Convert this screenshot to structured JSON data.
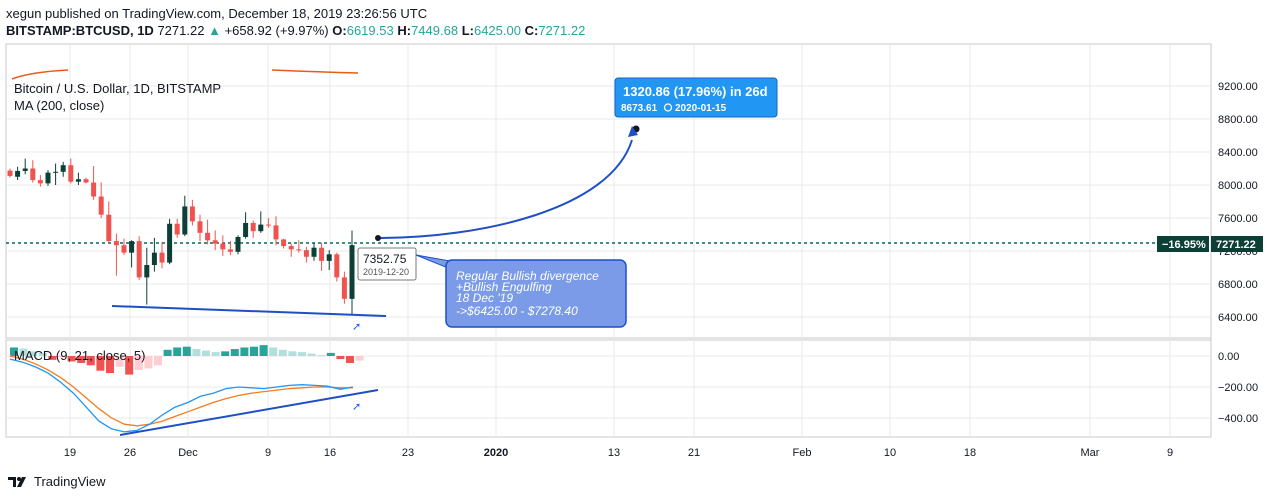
{
  "header": {
    "published_line": "xegun published on TradingView.com, December 18, 2019 23:26:56 UTC",
    "symbol": "BITSTAMP:BTCUSD, 1D",
    "last": "7271.22",
    "change_arrow": "▲",
    "change": "+658.92 (+9.97%)",
    "o_label": "O:",
    "o_val": "6619.53",
    "h_label": "H:",
    "h_val": "7449.68",
    "l_label": "L:",
    "l_val": "6425.00",
    "c_label": "C:",
    "c_val": "7271.22"
  },
  "legend": {
    "title": "Bitcoin / U.S. Dollar, 1D, BITSTAMP",
    "ma": "MA (200, close)",
    "macd": "MACD (9, 21, close, 5)"
  },
  "footer": {
    "brand": "TradingView",
    "logo_icon": "tradingview-logo-icon"
  },
  "annotations": {
    "target_main": "1320.86 (17.96%) in 26d",
    "target_sub_price": "8673.61",
    "target_sub_date": "2020-01-15",
    "clock_icon": "clock-icon",
    "hover_price": "7352.75",
    "hover_date": "2019-12-20",
    "note_lines": [
      "Regular Bullish divergence",
      "+Bullish Engulfing",
      "18 Dec '19",
      "->$6425.00 - $7278.40"
    ],
    "last_pct": "−16.95%",
    "last_price": "7271.22"
  },
  "colors": {
    "up": "#26a69a",
    "down": "#ef5350",
    "dark_up": "#0c3f36",
    "trend": "#1e4fc4",
    "macd": "#2196f3",
    "signal": "#f57c20",
    "hist_up": "#26a69a",
    "hist_up_light": "#b2dfdb",
    "hist_down": "#ef5350",
    "hist_down_light": "#ffcdd2",
    "note_fill": "#7b9be8",
    "target_fill": "#2196f3",
    "ma": "#e65c1b",
    "grid": "#e8e8e8",
    "lastline": "#00695c"
  },
  "chart_data": {
    "type": "candlestick",
    "price_axis": {
      "ticks": [
        "9200.00",
        "8800.00",
        "8400.00",
        "8000.00",
        "7600.00",
        "7200.00",
        "6800.00",
        "6400.00"
      ]
    },
    "macd_axis": {
      "ticks": [
        "0.00",
        "−200.00",
        "−400.00"
      ]
    },
    "x_ticks": [
      "19",
      "26",
      "Dec",
      "9",
      "16",
      "23",
      "2020",
      "13",
      "21",
      "Feb",
      "10",
      "18",
      "Mar",
      "9"
    ],
    "candles": [
      {
        "o": 8175,
        "h": 8200,
        "l": 8090,
        "c": 8110
      },
      {
        "o": 8100,
        "h": 8220,
        "l": 8060,
        "c": 8170
      },
      {
        "o": 8170,
        "h": 8320,
        "l": 8130,
        "c": 8200
      },
      {
        "o": 8200,
        "h": 8300,
        "l": 8030,
        "c": 8060
      },
      {
        "o": 8060,
        "h": 8120,
        "l": 7980,
        "c": 8020
      },
      {
        "o": 8020,
        "h": 8180,
        "l": 7990,
        "c": 8150
      },
      {
        "o": 8150,
        "h": 8260,
        "l": 8000,
        "c": 8160
      },
      {
        "o": 8160,
        "h": 8280,
        "l": 8100,
        "c": 8240
      },
      {
        "o": 8240,
        "h": 8320,
        "l": 8020,
        "c": 8040
      },
      {
        "o": 8040,
        "h": 8150,
        "l": 8000,
        "c": 8070
      },
      {
        "o": 8070,
        "h": 8090,
        "l": 8020,
        "c": 8030
      },
      {
        "o": 8030,
        "h": 8230,
        "l": 7820,
        "c": 7860
      },
      {
        "o": 7860,
        "h": 8030,
        "l": 7600,
        "c": 7640
      },
      {
        "o": 7640,
        "h": 7800,
        "l": 7310,
        "c": 7320
      },
      {
        "o": 7320,
        "h": 7410,
        "l": 6900,
        "c": 7270
      },
      {
        "o": 7270,
        "h": 7350,
        "l": 7150,
        "c": 7180
      },
      {
        "o": 7180,
        "h": 7330,
        "l": 7000,
        "c": 7320
      },
      {
        "o": 7320,
        "h": 7380,
        "l": 6850,
        "c": 6880
      },
      {
        "o": 6880,
        "h": 7240,
        "l": 6550,
        "c": 7030
      },
      {
        "o": 7030,
        "h": 7360,
        "l": 6950,
        "c": 7180
      },
      {
        "o": 7180,
        "h": 7310,
        "l": 6990,
        "c": 7060
      },
      {
        "o": 7060,
        "h": 7590,
        "l": 7040,
        "c": 7530
      },
      {
        "o": 7530,
        "h": 7590,
        "l": 7360,
        "c": 7400
      },
      {
        "o": 7400,
        "h": 7870,
        "l": 7380,
        "c": 7740
      },
      {
        "o": 7740,
        "h": 7820,
        "l": 7510,
        "c": 7560
      },
      {
        "o": 7560,
        "h": 7640,
        "l": 7320,
        "c": 7420
      },
      {
        "o": 7420,
        "h": 7580,
        "l": 7280,
        "c": 7330
      },
      {
        "o": 7330,
        "h": 7450,
        "l": 7210,
        "c": 7290
      },
      {
        "o": 7290,
        "h": 7390,
        "l": 7140,
        "c": 7220
      },
      {
        "o": 7220,
        "h": 7320,
        "l": 7150,
        "c": 7190
      },
      {
        "o": 7190,
        "h": 7390,
        "l": 7160,
        "c": 7370
      },
      {
        "o": 7370,
        "h": 7670,
        "l": 7350,
        "c": 7540
      },
      {
        "o": 7540,
        "h": 7570,
        "l": 7360,
        "c": 7440
      },
      {
        "o": 7440,
        "h": 7680,
        "l": 7420,
        "c": 7520
      },
      {
        "o": 7520,
        "h": 7600,
        "l": 7480,
        "c": 7510
      },
      {
        "o": 7510,
        "h": 7620,
        "l": 7270,
        "c": 7340
      },
      {
        "o": 7340,
        "h": 7350,
        "l": 7230,
        "c": 7260
      },
      {
        "o": 7260,
        "h": 7290,
        "l": 7130,
        "c": 7220
      },
      {
        "o": 7220,
        "h": 7330,
        "l": 7180,
        "c": 7210
      },
      {
        "o": 7210,
        "h": 7250,
        "l": 7060,
        "c": 7130
      },
      {
        "o": 7130,
        "h": 7300,
        "l": 7080,
        "c": 7240
      },
      {
        "o": 7240,
        "h": 7300,
        "l": 6960,
        "c": 7080
      },
      {
        "o": 7080,
        "h": 7210,
        "l": 6970,
        "c": 7160
      },
      {
        "o": 7160,
        "h": 7180,
        "l": 6830,
        "c": 6880
      },
      {
        "o": 6880,
        "h": 6950,
        "l": 6560,
        "c": 6620
      },
      {
        "o": 6620,
        "h": 7449,
        "l": 6425,
        "c": 7271
      }
    ],
    "macd_hist": [
      55,
      48,
      30,
      20,
      -25,
      -10,
      -35,
      -45,
      -60,
      -95,
      -110,
      -70,
      -120,
      -90,
      -80,
      -60,
      40,
      55,
      60,
      45,
      35,
      25,
      30,
      45,
      55,
      60,
      70,
      55,
      40,
      30,
      25,
      15,
      5,
      20,
      -20,
      -45,
      -30
    ],
    "macd_line": [
      -20,
      -40,
      -70,
      -110,
      -170,
      -240,
      -330,
      -420,
      -470,
      -490,
      -480,
      -440,
      -380,
      -330,
      -300,
      -260,
      -240,
      -210,
      -200,
      -205,
      -210,
      -200,
      -190,
      -185,
      -190,
      -195,
      -215,
      -200
    ],
    "signal_line": [
      0,
      -20,
      -50,
      -90,
      -140,
      -200,
      -270,
      -340,
      -400,
      -440,
      -450,
      -440,
      -420,
      -390,
      -360,
      -330,
      -300,
      -275,
      -255,
      -240,
      -230,
      -220,
      -210,
      -205,
      -200,
      -200,
      -205,
      -205
    ]
  }
}
